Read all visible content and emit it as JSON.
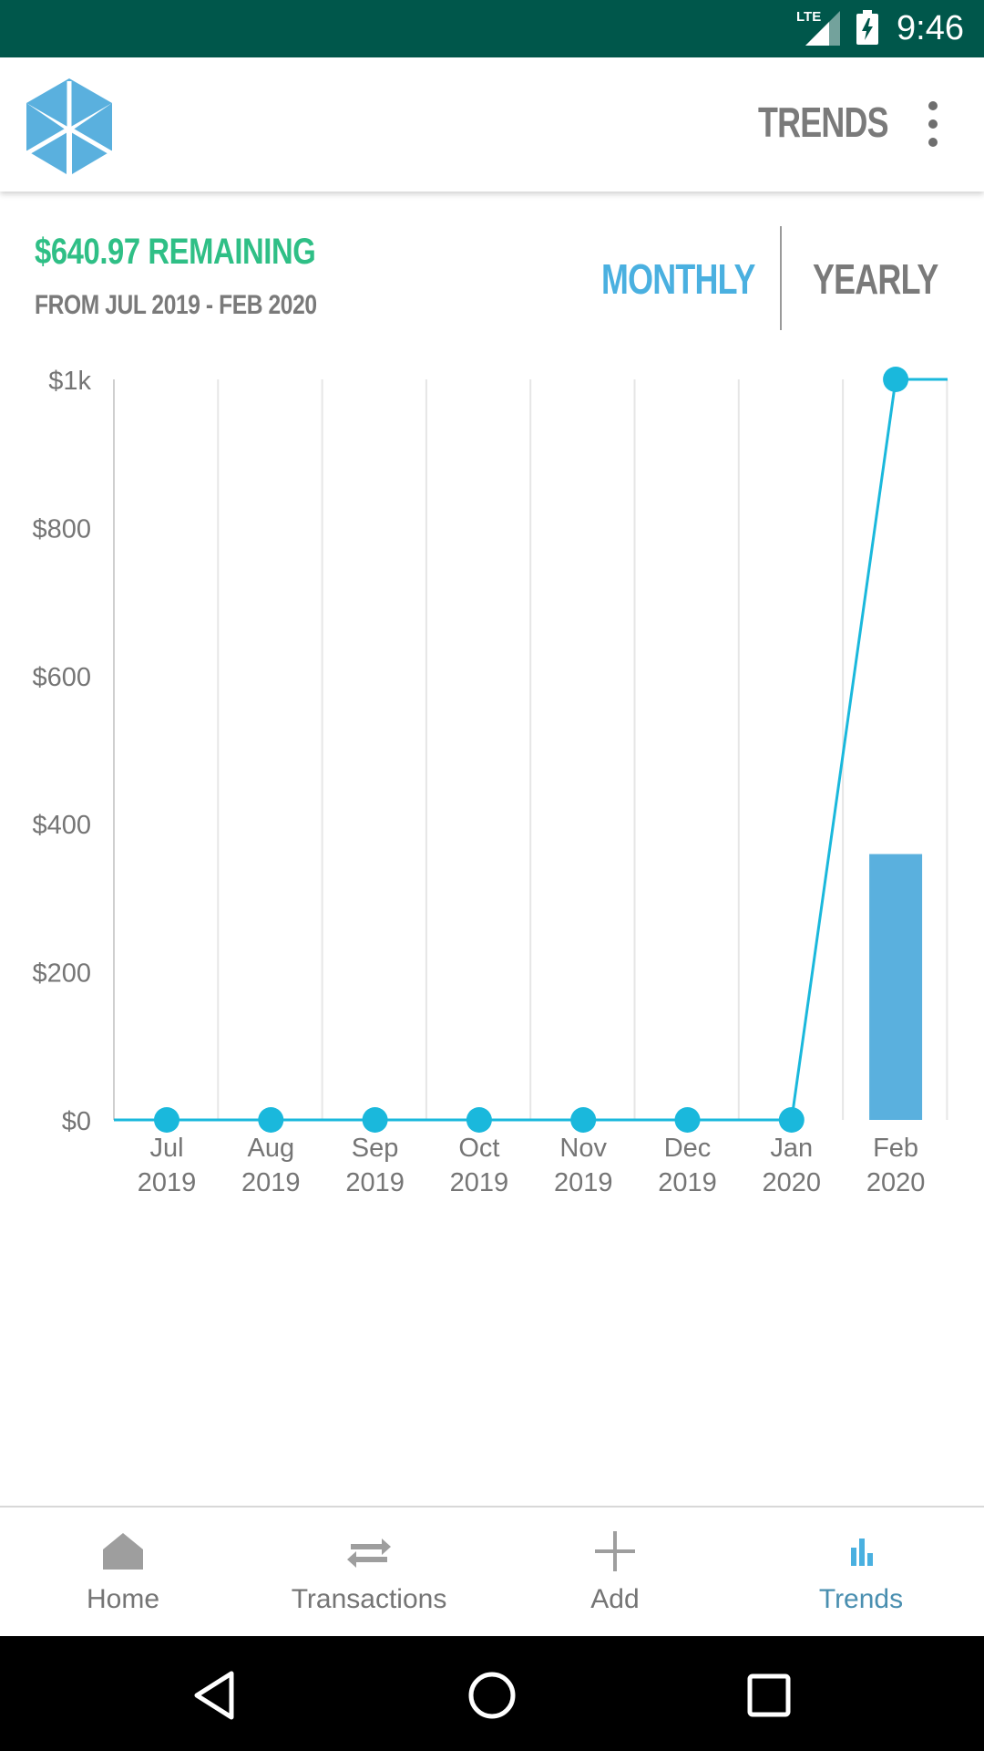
{
  "status_bar": {
    "network": "LTE",
    "time": "9:46"
  },
  "app_bar": {
    "title": "TRENDS",
    "logo_color": "#5ab0de"
  },
  "summary": {
    "remaining": "$640.97 REMAINING",
    "range": "FROM JUL 2019 - FEB 2020"
  },
  "tabs": [
    {
      "label": "MONTHLY",
      "active": true
    },
    {
      "label": "YEARLY",
      "active": false
    }
  ],
  "chart_data": {
    "type": "bar",
    "categories": [
      "Jul 2019",
      "Aug 2019",
      "Sep 2019",
      "Oct 2019",
      "Nov 2019",
      "Dec 2019",
      "Jan 2020",
      "Feb 2020"
    ],
    "x_tick_labels": [
      [
        "Jul",
        "2019"
      ],
      [
        "Aug",
        "2019"
      ],
      [
        "Sep",
        "2019"
      ],
      [
        "Oct",
        "2019"
      ],
      [
        "Nov",
        "2019"
      ],
      [
        "Dec",
        "2019"
      ],
      [
        "Jan",
        "2020"
      ],
      [
        "Feb",
        "2020"
      ]
    ],
    "series": [
      {
        "type": "bar",
        "values": [
          0,
          0,
          0,
          0,
          0,
          0,
          0,
          359
        ],
        "color": "#5ab0de"
      },
      {
        "type": "line",
        "values": [
          0,
          0,
          0,
          0,
          0,
          0,
          0,
          1000
        ],
        "color": "#1ab8dc"
      }
    ],
    "y_ticks": [
      0,
      200,
      400,
      600,
      800,
      1000
    ],
    "y_tick_labels": [
      "$0",
      "$200",
      "$400",
      "$600",
      "$800",
      "$1k"
    ],
    "ylim": [
      0,
      1000
    ],
    "grid": "vertical",
    "legend": "none"
  },
  "bottom_nav": [
    {
      "label": "Home",
      "icon": "home-icon",
      "active": false
    },
    {
      "label": "Transactions",
      "icon": "transfer-arrows-icon",
      "active": false
    },
    {
      "label": "Add",
      "icon": "plus-icon",
      "active": false
    },
    {
      "label": "Trends",
      "icon": "bar-chart-icon",
      "active": true
    }
  ],
  "colors": {
    "status_bar": "#00574b",
    "accent_green": "#2fbf86",
    "accent_blue": "#4ab0e0",
    "muted_text": "#7a7a7a"
  }
}
